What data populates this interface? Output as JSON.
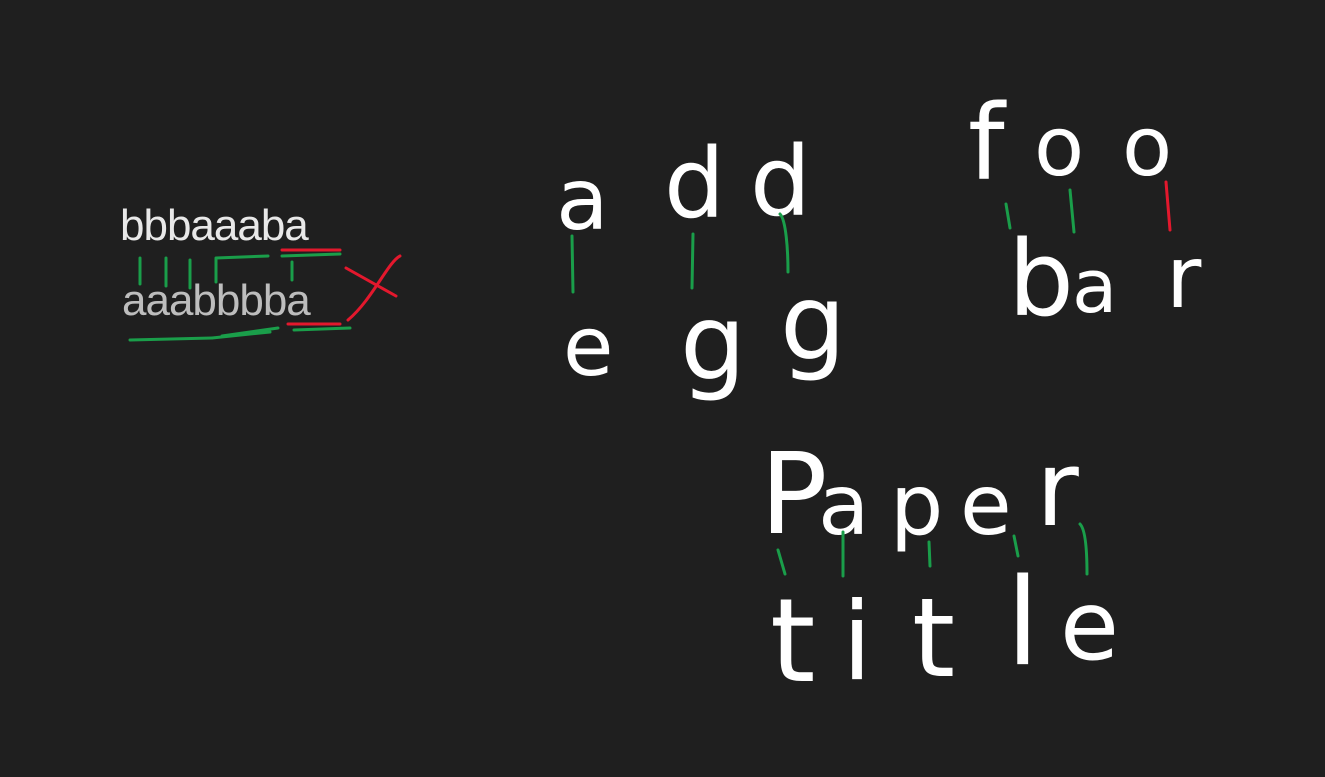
{
  "examples": [
    {
      "word_1": "bbbaaaba",
      "word_2": "aaabbbba",
      "result_mark": "X"
    },
    {
      "word_1": [
        "a",
        "d",
        "d"
      ],
      "word_2": [
        "e",
        "g",
        "g"
      ]
    },
    {
      "word_1": [
        "f",
        "o",
        "o"
      ],
      "word_2": [
        "b",
        "a",
        "r"
      ]
    },
    {
      "word_1": [
        "P",
        "a",
        "p",
        "e",
        "r"
      ],
      "word_2": [
        "t",
        "i",
        "t",
        "l",
        "e"
      ]
    }
  ],
  "colors": {
    "background": "#1f1f1f",
    "ink": "#ffffff",
    "match": "#1a9e4a",
    "mismatch": "#e3182d"
  }
}
